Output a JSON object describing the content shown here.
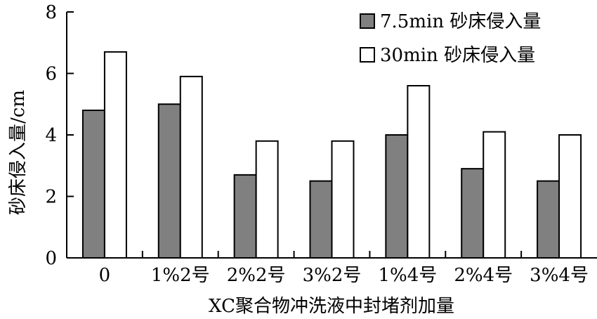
{
  "chart_data": {
    "type": "bar",
    "title": "",
    "xlabel": "XC聚合物冲洗液中封堵剂加量",
    "ylabel": "砂床侵入量/cm",
    "ylim": [
      0,
      8
    ],
    "yticks": [
      "0",
      "2",
      "4",
      "6",
      "8"
    ],
    "categories": [
      "0",
      "1%2号",
      "2%2号",
      "3%2号",
      "1%4号",
      "2%4号",
      "3%4号"
    ],
    "series": [
      {
        "name": "7.5min 砂床侵入量",
        "color": "#808080",
        "values": [
          4.8,
          5.0,
          2.7,
          2.5,
          4.0,
          2.9,
          2.5
        ]
      },
      {
        "name": "30min 砂床侵入量",
        "color": "#ffffff",
        "values": [
          6.7,
          5.9,
          3.8,
          3.8,
          5.6,
          4.1,
          4.0
        ]
      }
    ],
    "legend_position": "top-right",
    "grid": false
  }
}
